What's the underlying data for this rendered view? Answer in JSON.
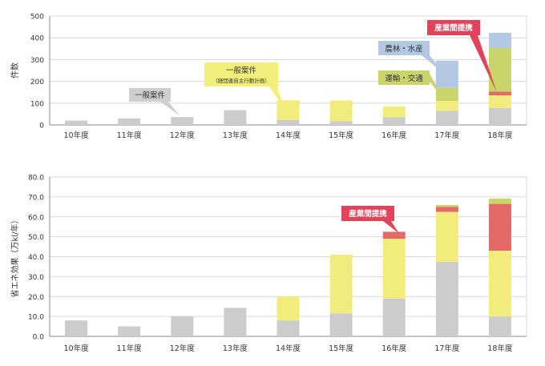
{
  "colors": {
    "general": "#cccccc",
    "general_plan": "#f2ec7c",
    "transport": "#c9d46a",
    "agri": "#b3c8e3",
    "industry": "#e46a6a",
    "axis": "#888888",
    "grid": "#d9d9d9",
    "text": "#333333",
    "callout_gray": "#cfcfcf",
    "callout_yellow": "#f4ef7a",
    "callout_green": "#c9d46a",
    "callout_blue": "#b3c8e3",
    "callout_red": "#e0435a"
  },
  "chart_data": [
    {
      "type": "bar",
      "stacked": true,
      "categories": [
        "10年度",
        "11年度",
        "12年度",
        "13年度",
        "14年度",
        "15年度",
        "16年度",
        "17年度",
        "18年度"
      ],
      "ylabel": "件数",
      "ylim": [
        0,
        500
      ],
      "yticks": [
        "0",
        "100",
        "200",
        "300",
        "400",
        "500"
      ],
      "grid": true,
      "series": [
        {
          "key": "general",
          "values": [
            20,
            30,
            36,
            68,
            23,
            17,
            35,
            65,
            78
          ]
        },
        {
          "key": "general_plan",
          "values": [
            0,
            0,
            0,
            0,
            90,
            95,
            50,
            45,
            58
          ]
        },
        {
          "key": "industry",
          "values": [
            0,
            0,
            0,
            0,
            0,
            0,
            0,
            0,
            17
          ]
        },
        {
          "key": "transport",
          "values": [
            0,
            0,
            0,
            0,
            0,
            0,
            0,
            60,
            200
          ]
        },
        {
          "key": "agri",
          "values": [
            0,
            0,
            0,
            0,
            0,
            0,
            0,
            125,
            70
          ]
        }
      ],
      "annotations": [
        {
          "key": "general",
          "text": "一般案件"
        },
        {
          "key": "general_plan",
          "text": "一般案件",
          "subtext": "（経団連自主行動計画）"
        },
        {
          "key": "agri",
          "text": "農林・水産"
        },
        {
          "key": "transport",
          "text": "運輸・交通"
        },
        {
          "key": "industry",
          "text": "産業間提携"
        }
      ]
    },
    {
      "type": "bar",
      "stacked": true,
      "categories": [
        "10年度",
        "11年度",
        "12年度",
        "13年度",
        "14年度",
        "15年度",
        "16年度",
        "17年度",
        "18年度"
      ],
      "ylabel": "省エネ効果（万kl/年）",
      "ylim": [
        0,
        80
      ],
      "yticks": [
        "0.0",
        "10.0",
        "20.0",
        "30.0",
        "40.0",
        "50.0",
        "60.0",
        "70.0",
        "80.0"
      ],
      "grid": true,
      "series": [
        {
          "key": "general",
          "values": [
            8,
            5,
            10,
            14.3,
            8,
            11.5,
            19,
            37.5,
            10
          ]
        },
        {
          "key": "general_plan",
          "values": [
            0,
            0,
            0,
            0,
            12,
            29.5,
            30,
            25,
            33
          ]
        },
        {
          "key": "industry",
          "values": [
            0,
            0,
            0,
            0,
            0,
            0,
            3.5,
            2.5,
            23.5
          ]
        },
        {
          "key": "transport",
          "values": [
            0,
            0,
            0,
            0,
            0,
            0,
            0,
            1,
            2.7
          ]
        }
      ],
      "annotations": [
        {
          "key": "industry",
          "text": "産業間提携"
        }
      ]
    }
  ]
}
